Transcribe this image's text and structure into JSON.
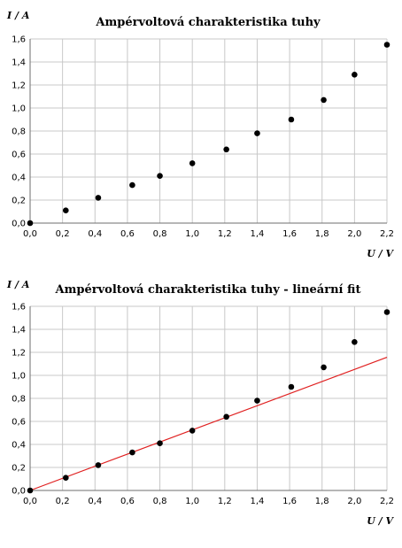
{
  "chart_data": [
    {
      "type": "scatter",
      "title": "Ampérvoltová charakteristika tuhy",
      "xlabel": "U / V",
      "ylabel": "I / A",
      "xlim": [
        0,
        2.2
      ],
      "ylim": [
        0,
        1.6
      ],
      "xticks": [
        "0,0",
        "0,2",
        "0,4",
        "0,6",
        "0,8",
        "1,0",
        "1,2",
        "1,4",
        "1,6",
        "1,8",
        "2,0",
        "2,2"
      ],
      "yticks": [
        "0,0",
        "0,2",
        "0,4",
        "0,6",
        "0,8",
        "1,0",
        "1,2",
        "1,4",
        "1,6"
      ],
      "grid": true,
      "series": [
        {
          "x": [
            0.0,
            0.22,
            0.42,
            0.63,
            0.8,
            1.0,
            1.21,
            1.4,
            1.61,
            1.81,
            2.0,
            2.2
          ],
          "y": [
            0.0,
            0.11,
            0.22,
            0.33,
            0.41,
            0.52,
            0.64,
            0.78,
            0.9,
            1.07,
            1.29,
            1.55
          ],
          "color": "#000000"
        }
      ]
    },
    {
      "type": "scatter",
      "title": "Ampérvoltová charakteristika tuhy - lineární fit",
      "xlabel": "U / V",
      "ylabel": "I / A",
      "xlim": [
        0,
        2.2
      ],
      "ylim": [
        0,
        1.6
      ],
      "xticks": [
        "0,0",
        "0,2",
        "0,4",
        "0,6",
        "0,8",
        "1,0",
        "1,2",
        "1,4",
        "1,6",
        "1,8",
        "2,0",
        "2,2"
      ],
      "yticks": [
        "0,0",
        "0,2",
        "0,4",
        "0,6",
        "0,8",
        "1,0",
        "1,2",
        "1,4",
        "1,6"
      ],
      "grid": true,
      "series": [
        {
          "x": [
            0.0,
            0.22,
            0.42,
            0.63,
            0.8,
            1.0,
            1.21,
            1.4,
            1.61,
            1.81,
            2.0,
            2.2
          ],
          "y": [
            0.0,
            0.11,
            0.22,
            0.33,
            0.41,
            0.52,
            0.64,
            0.78,
            0.9,
            1.07,
            1.29,
            1.55
          ],
          "color": "#000000"
        }
      ],
      "fit_line": {
        "slope": 0.526,
        "intercept": 0,
        "x_range": [
          0,
          2.2
        ],
        "color": "#e02020"
      }
    }
  ]
}
